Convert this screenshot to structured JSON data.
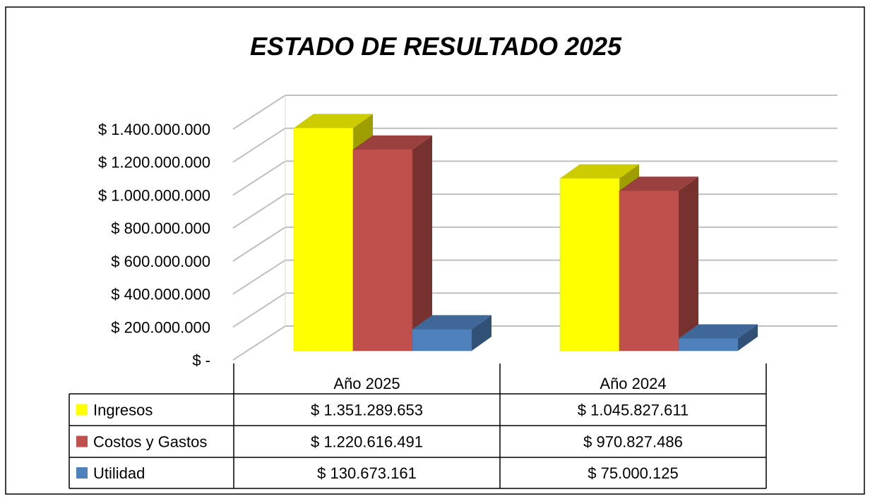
{
  "chart_data": {
    "type": "bar3d",
    "title": "ESTADO DE RESULTADO 2025",
    "categories": [
      "Año 2025",
      "Año 2024"
    ],
    "series": [
      {
        "name": "Ingresos",
        "color": "#ffff00",
        "values": [
          1351289653,
          1045827611
        ],
        "value_labels": [
          "$ 1.351.289.653",
          "$ 1.045.827.611"
        ]
      },
      {
        "name": "Costos y Gastos",
        "color": "#c0504d",
        "values": [
          1220616491,
          970827486
        ],
        "value_labels": [
          "$ 1.220.616.491",
          "$ 970.827.486"
        ]
      },
      {
        "name": "Utilidad",
        "color": "#4f81bd",
        "values": [
          130673161,
          75000125
        ],
        "value_labels": [
          "$ 130.673.161",
          "$ 75.000.125"
        ]
      }
    ],
    "ylim": [
      0,
      1400000000
    ],
    "yticks": [
      {
        "value": 0,
        "label": "$ -"
      },
      {
        "value": 200000000,
        "label": "$ 200.000.000"
      },
      {
        "value": 400000000,
        "label": "$ 400.000.000"
      },
      {
        "value": 600000000,
        "label": "$ 600.000.000"
      },
      {
        "value": 800000000,
        "label": "$ 800.000.000"
      },
      {
        "value": 1000000000,
        "label": "$ 1.000.000.000"
      },
      {
        "value": 1200000000,
        "label": "$ 1.200.000.000"
      },
      {
        "value": 1400000000,
        "label": "$ 1.400.000.000"
      }
    ],
    "grid": true
  }
}
